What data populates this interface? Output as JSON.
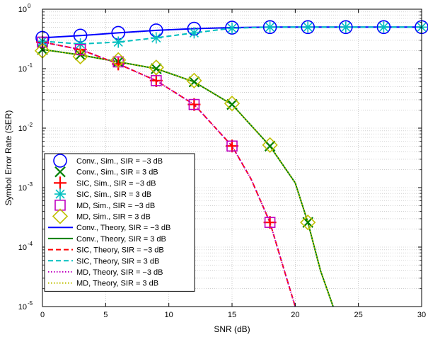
{
  "chart_data": {
    "type": "line",
    "xlabel": "SNR (dB)",
    "ylabel": "Symbol Error Rate (SER)",
    "xlim": [
      0,
      30
    ],
    "ylim": [
      1e-05,
      1
    ],
    "yscale": "log",
    "grid": true,
    "legend_position": "bottom-left",
    "x_ticks": [
      "0",
      "5",
      "10",
      "15",
      "20",
      "25",
      "30"
    ],
    "y_ticks": [
      {
        "base": "10",
        "exp": "0"
      },
      {
        "base": "10",
        "exp": "-1"
      },
      {
        "base": "10",
        "exp": "-2"
      },
      {
        "base": "10",
        "exp": "-3"
      },
      {
        "base": "10",
        "exp": "-4"
      },
      {
        "base": "10",
        "exp": "-5"
      }
    ],
    "series": [
      {
        "name": "Conv., Sim., SIR = −3 dB",
        "kind": "markers",
        "marker": "circle",
        "color": "#0000ff",
        "x": [
          0,
          3,
          6,
          9,
          12,
          15,
          18,
          21,
          24,
          27,
          30
        ],
        "y": [
          0.33,
          0.36,
          0.4,
          0.44,
          0.47,
          0.49,
          0.5,
          0.5,
          0.5,
          0.5,
          0.5
        ]
      },
      {
        "name": "Conv., Sim., SIR = 3 dB",
        "kind": "markers",
        "marker": "x",
        "color": "#007f00",
        "x": [
          0,
          3,
          6,
          9,
          12,
          15,
          18,
          21
        ],
        "y": [
          0.21,
          0.17,
          0.13,
          0.1,
          0.06,
          0.025,
          0.005,
          0.00026
        ]
      },
      {
        "name": "SIC, Sim., SIR = −3 dB",
        "kind": "markers",
        "marker": "plus",
        "color": "#ff0000",
        "x": [
          0,
          3,
          6,
          9,
          12,
          15,
          18
        ],
        "y": [
          0.28,
          0.21,
          0.12,
          0.063,
          0.025,
          0.005,
          0.00026
        ]
      },
      {
        "name": "SIC, Sim., SIR = 3 dB",
        "kind": "markers",
        "marker": "asterisk",
        "color": "#00bfbf",
        "x": [
          0,
          3,
          6,
          9,
          12,
          15,
          18,
          21,
          24,
          27,
          30
        ],
        "y": [
          0.29,
          0.26,
          0.28,
          0.33,
          0.4,
          0.48,
          0.5,
          0.5,
          0.5,
          0.5,
          0.5
        ]
      },
      {
        "name": "MD, Sim., SIR = −3 dB",
        "kind": "markers",
        "marker": "square",
        "color": "#bf00bf",
        "x": [
          0,
          3,
          6,
          9,
          12,
          15,
          18
        ],
        "y": [
          0.28,
          0.21,
          0.13,
          0.063,
          0.025,
          0.005,
          0.00026
        ]
      },
      {
        "name": "MD, Sim., SIR = 3 dB",
        "kind": "markers",
        "marker": "diamond",
        "color": "#bfbf00",
        "x": [
          0,
          3,
          6,
          9,
          12,
          15,
          18,
          21
        ],
        "y": [
          0.2,
          0.16,
          0.14,
          0.105,
          0.063,
          0.026,
          0.0052,
          0.00026
        ]
      },
      {
        "name": "Conv., Theory, SIR = −3 dB",
        "kind": "line",
        "dash": "solid",
        "color": "#0000ff",
        "x": [
          0,
          3,
          6,
          9,
          12,
          15,
          18,
          21,
          24,
          27,
          30
        ],
        "y": [
          0.33,
          0.36,
          0.4,
          0.44,
          0.47,
          0.49,
          0.5,
          0.5,
          0.5,
          0.5,
          0.5
        ]
      },
      {
        "name": "Conv., Theory, SIR = 3 dB",
        "kind": "line",
        "dash": "solid",
        "color": "#007f00",
        "x": [
          0,
          3,
          6,
          9,
          12,
          15,
          18,
          20,
          21,
          22,
          23
        ],
        "y": [
          0.21,
          0.17,
          0.13,
          0.1,
          0.06,
          0.025,
          0.005,
          0.0012,
          0.00026,
          4e-05,
          1e-05
        ]
      },
      {
        "name": "SIC, Theory, SIR = −3 dB",
        "kind": "line",
        "dash": "dashed",
        "color": "#ff0000",
        "x": [
          0,
          3,
          6,
          9,
          12,
          15,
          16.5,
          18,
          19,
          20
        ],
        "y": [
          0.28,
          0.21,
          0.12,
          0.063,
          0.025,
          0.005,
          0.0014,
          0.00026,
          5e-05,
          1e-05
        ]
      },
      {
        "name": "SIC, Theory, SIR = 3 dB",
        "kind": "line",
        "dash": "dashed",
        "color": "#00bfbf",
        "x": [
          0,
          3,
          6,
          9,
          12,
          15,
          18,
          21,
          24,
          27,
          30
        ],
        "y": [
          0.29,
          0.26,
          0.28,
          0.33,
          0.4,
          0.48,
          0.5,
          0.5,
          0.5,
          0.5,
          0.5
        ]
      },
      {
        "name": "MD, Theory, SIR = −3 dB",
        "kind": "line",
        "dash": "dotted",
        "color": "#bf00bf",
        "x": [
          0,
          3,
          6,
          9,
          12,
          15,
          16.5,
          18,
          19,
          20
        ],
        "y": [
          0.28,
          0.21,
          0.12,
          0.063,
          0.025,
          0.005,
          0.0014,
          0.00026,
          5e-05,
          1e-05
        ]
      },
      {
        "name": "MD, Theory, SIR = 3 dB",
        "kind": "line",
        "dash": "dotted",
        "color": "#bfbf00",
        "x": [
          0,
          3,
          6,
          9,
          12,
          15,
          18,
          20,
          21,
          22,
          23
        ],
        "y": [
          0.21,
          0.17,
          0.13,
          0.1,
          0.06,
          0.025,
          0.005,
          0.0012,
          0.00026,
          4e-05,
          1e-05
        ]
      }
    ]
  }
}
